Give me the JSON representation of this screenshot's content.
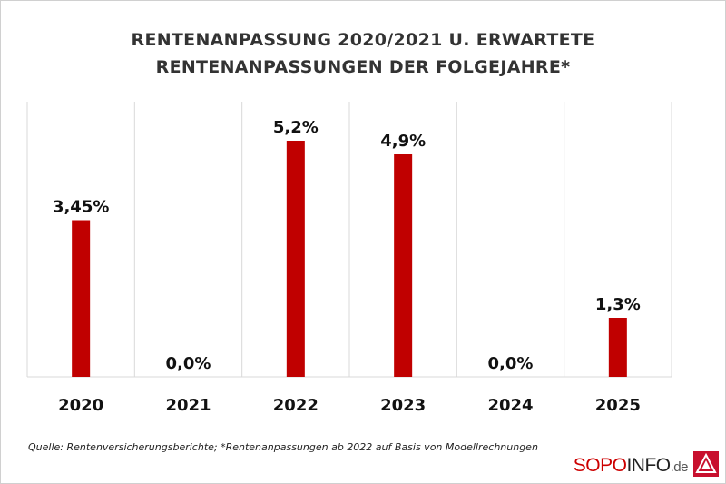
{
  "title": {
    "line1": "RENTENANPASSUNG 2020/2021 U. ERWARTETE",
    "line2": "RENTENANPASSUNGEN DER FOLGEJAHRE*"
  },
  "source": "Quelle: Rentenversicherungsberichte; *Rentenanpassungen ab 2022 auf Basis von Modellrechnungen",
  "logo": {
    "part1": "SOPO",
    "part2": "INFO",
    "part3": ".de",
    "colors": {
      "brand_red": "#cc0000",
      "dark": "#222222"
    }
  },
  "colors": {
    "bar": "#c00000",
    "grid": "#d9d9d9"
  },
  "chart_data": {
    "type": "bar",
    "title": "RENTENANPASSUNG 2020/2021 U. ERWARTETE RENTENANPASSUNGEN DER FOLGEJAHRE*",
    "categories": [
      "2020",
      "2021",
      "2022",
      "2023",
      "2024",
      "2025"
    ],
    "values": [
      3.45,
      0.0,
      5.2,
      4.9,
      0.0,
      1.3
    ],
    "data_labels": [
      "3,45%",
      "0,0%",
      "5,2%",
      "4,9%",
      "0,0%",
      "1,3%"
    ],
    "xlabel": "",
    "ylabel": "",
    "ylim": [
      0,
      6
    ],
    "grid": "vertical category separators",
    "legend": "none"
  }
}
